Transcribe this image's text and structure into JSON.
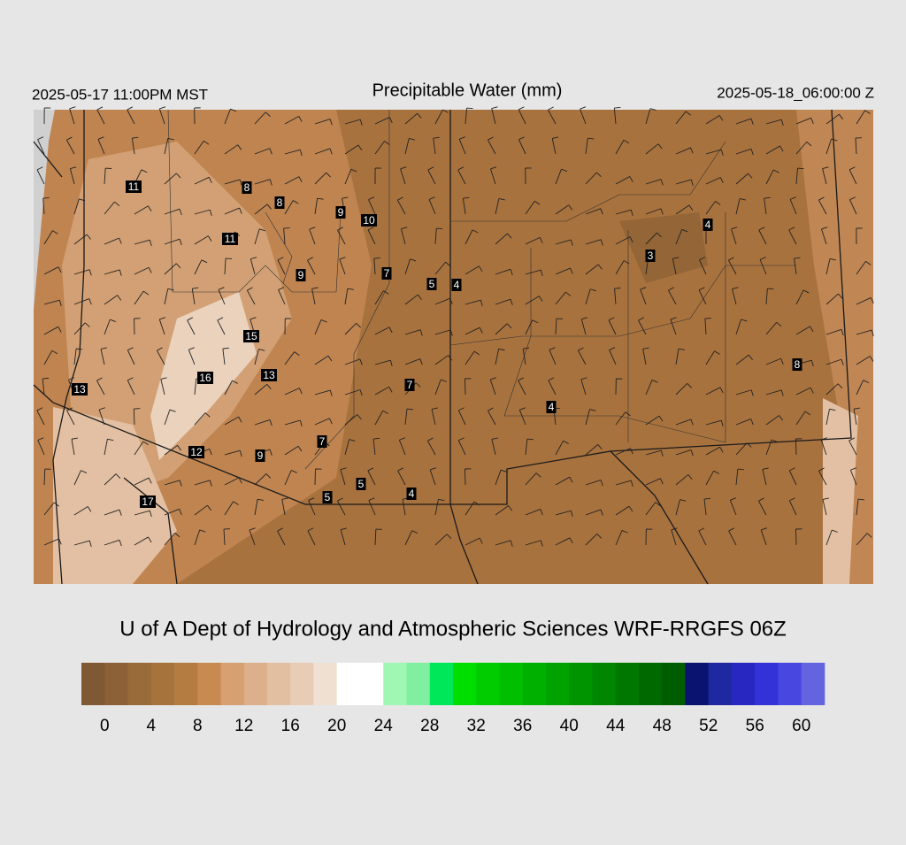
{
  "header": {
    "left": "2025-05-17 11:00PM MST",
    "title": "Precipitable Water (mm)",
    "right": "2025-05-18_06:00:00 Z"
  },
  "map": {
    "station_values": [
      "11",
      "8",
      "8",
      "9",
      "10",
      "11",
      "4",
      "3",
      "9",
      "7",
      "5",
      "4",
      "15",
      "8",
      "16",
      "13",
      "13",
      "7",
      "4",
      "7",
      "12",
      "9",
      "5",
      "4",
      "5",
      "17"
    ]
  },
  "credit": "U of A Dept of Hydrology and Atmospheric Sciences WRF-RRGFS 06Z",
  "colorbar": {
    "colors": [
      "#7f5834",
      "#8d6137",
      "#996a3a",
      "#a6733d",
      "#b47c41",
      "#c88a50",
      "#d6a070",
      "#dcb08a",
      "#e2bfa0",
      "#e9ccb5",
      "#f0e0d2",
      "#ffffff",
      "#ffffff",
      "#a0f7b4",
      "#80f0a0",
      "#00e85a",
      "#00dd00",
      "#00cc00",
      "#00bf00",
      "#00b000",
      "#00a200",
      "#009400",
      "#008600",
      "#007800",
      "#006a00",
      "#005c00",
      "#0a1470",
      "#1e28a0",
      "#2828c0",
      "#3232d8",
      "#4848e0",
      "#6464e0"
    ],
    "ticks": [
      0,
      4,
      8,
      12,
      16,
      20,
      24,
      28,
      32,
      36,
      40,
      44,
      48,
      52,
      56,
      60
    ]
  }
}
